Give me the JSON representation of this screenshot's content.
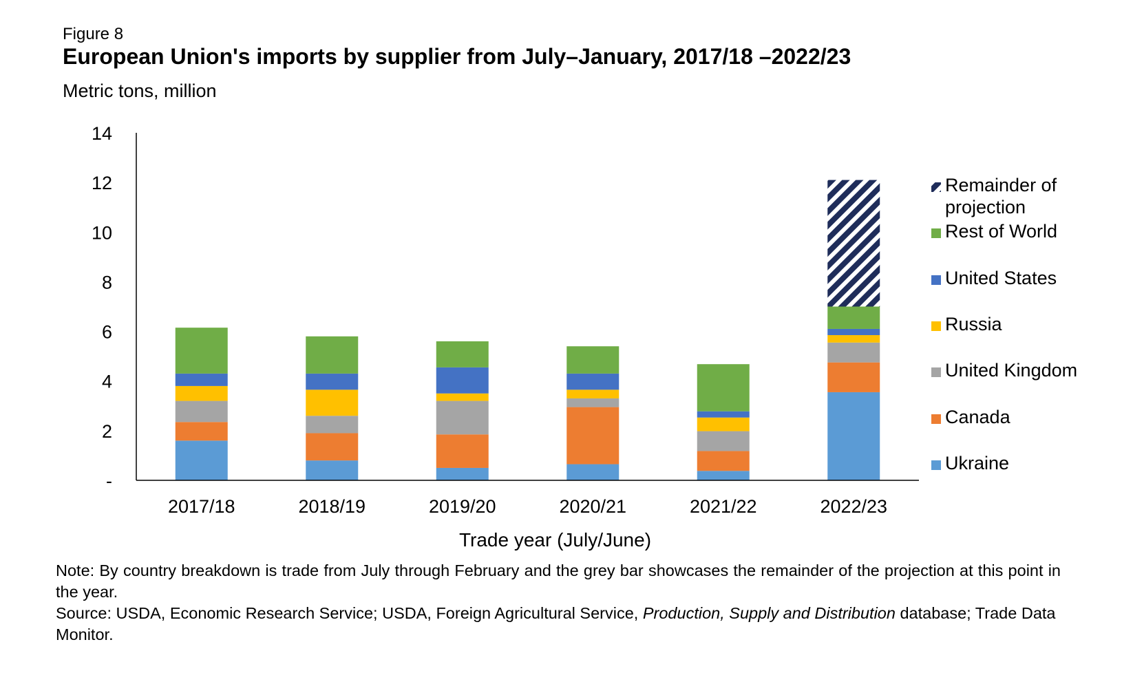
{
  "figure": {
    "label": "Figure 8",
    "title": "European Union's imports by supplier from July–January, 2017/18 –2022/23",
    "units": "Metric tons, million"
  },
  "notes": {
    "note": "Note: By country breakdown is trade from July through February and the grey bar showcases the remainder of the projection at this point in the year.",
    "source_prefix": "Source: USDA, Economic Research Service; USDA, Foreign Agricultural Service,",
    "source_italic": "Production, Supply and Distribution",
    "source_suffix": "database; Trade Data Monitor."
  },
  "chart_data": {
    "type": "bar",
    "stacked": true,
    "title": "European Union's imports by supplier from July–January, 2017/18 –2022/23",
    "xlabel": "Trade year (July/June)",
    "ylabel": "Metric tons, million",
    "ylim": [
      0,
      14
    ],
    "yticks": [
      0,
      2,
      4,
      6,
      8,
      10,
      12,
      14
    ],
    "ytick_labels": [
      "-",
      "2",
      "4",
      "6",
      "8",
      "10",
      "12",
      "14"
    ],
    "grid": false,
    "legend_position": "right",
    "categories": [
      "2017/18",
      "2018/19",
      "2019/20",
      "2020/21",
      "2021/22",
      "2022/23"
    ],
    "series": [
      {
        "name": "Ukraine",
        "color": "#5b9bd5",
        "values": [
          1.6,
          0.8,
          0.5,
          0.65,
          0.38,
          3.55
        ]
      },
      {
        "name": "Canada",
        "color": "#ed7d31",
        "values": [
          0.75,
          1.1,
          1.35,
          2.3,
          0.8,
          1.2
        ]
      },
      {
        "name": "United Kingdom",
        "color": "#a5a5a5",
        "values": [
          0.85,
          0.7,
          1.35,
          0.35,
          0.8,
          0.8
        ]
      },
      {
        "name": "Russia",
        "color": "#ffc000",
        "values": [
          0.6,
          1.05,
          0.3,
          0.35,
          0.55,
          0.3
        ]
      },
      {
        "name": "United States",
        "color": "#4472c4",
        "values": [
          0.5,
          0.65,
          1.05,
          0.65,
          0.25,
          0.25
        ]
      },
      {
        "name": "Rest of World",
        "color": "#70ad47",
        "values": [
          1.85,
          1.5,
          1.05,
          1.1,
          1.9,
          0.9
        ]
      },
      {
        "name": "Remainder of projection",
        "color": "#1f2d5a",
        "pattern": "diagonal-stripes",
        "values": [
          0,
          0,
          0,
          0,
          0,
          5.1
        ]
      }
    ],
    "legend_order": [
      "Remainder of projection",
      "Rest of World",
      "United States",
      "Russia",
      "United Kingdom",
      "Canada",
      "Ukraine"
    ]
  }
}
